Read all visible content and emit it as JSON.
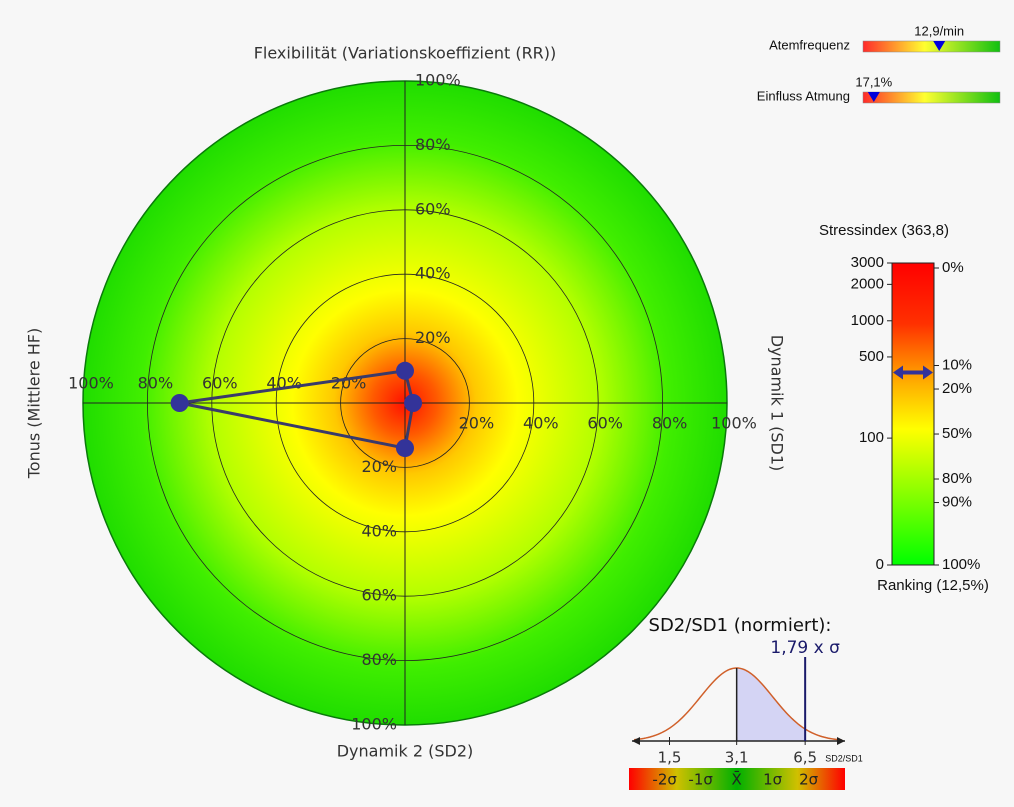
{
  "chart_data": [
    {
      "type": "radar",
      "axes": [
        "Flexibilität (Variationskoeffizient (RR))",
        "Dynamik 1 (SD1)",
        "Dynamik 2 (SD2)",
        "Tonus (Mittlere HF)"
      ],
      "values": [
        10,
        2.5,
        14,
        70
      ],
      "color": "#333399",
      "rlim": [
        0,
        100
      ],
      "rticks": [
        {
          "value": 20,
          "label": "20%"
        },
        {
          "value": 40,
          "label": "40%"
        },
        {
          "value": 60,
          "label": "60%"
        },
        {
          "value": 80,
          "label": "80%"
        },
        {
          "value": 100,
          "label": "100%"
        }
      ]
    },
    {
      "type": "gauge",
      "title": "Atemfrequenz",
      "values": [
        12.9
      ],
      "value_labels": [
        "12,9/min"
      ],
      "xlim": [
        4,
        20
      ]
    },
    {
      "type": "gauge",
      "title": "Einfluss Atmung",
      "values": [
        17.1
      ],
      "value_labels": [
        "17,1%"
      ],
      "xlim": [
        10,
        100
      ]
    },
    {
      "type": "colorbar",
      "title": "Stressindex (363,8)",
      "xlabel": "Ranking (12,5%)",
      "ylim": [
        0,
        3000
      ],
      "yticks": [
        0,
        100,
        500,
        1000,
        2000,
        3000
      ],
      "y2lim": [
        0,
        100
      ],
      "y2ticks": [
        {
          "value": 0,
          "label": "0%"
        },
        {
          "value": 10,
          "label": "10%"
        },
        {
          "value": 20,
          "label": "20%"
        },
        {
          "value": 50,
          "label": "50%"
        },
        {
          "value": 80,
          "label": "80%"
        },
        {
          "value": 90,
          "label": "90%"
        },
        {
          "value": 100,
          "label": "100%"
        }
      ],
      "values": [
        12.5
      ],
      "axis": "y2",
      "color": "#333399"
    },
    {
      "type": "distribution",
      "title": "SD2/SD1 (normiert):",
      "annotation": "1,79 x σ",
      "xlabel": "SD2/SD1",
      "xlim": [
        1,
        10
      ],
      "log_x": true,
      "xticks": [
        {
          "value": 1.5,
          "label": "1,5"
        },
        {
          "value": 3.1,
          "label": "3,1"
        },
        {
          "value": 6.5,
          "label": "6,5"
        }
      ],
      "sigma_labels": [
        "-2σ",
        "-1σ",
        "X̄",
        "1σ",
        "2σ"
      ]
    }
  ]
}
